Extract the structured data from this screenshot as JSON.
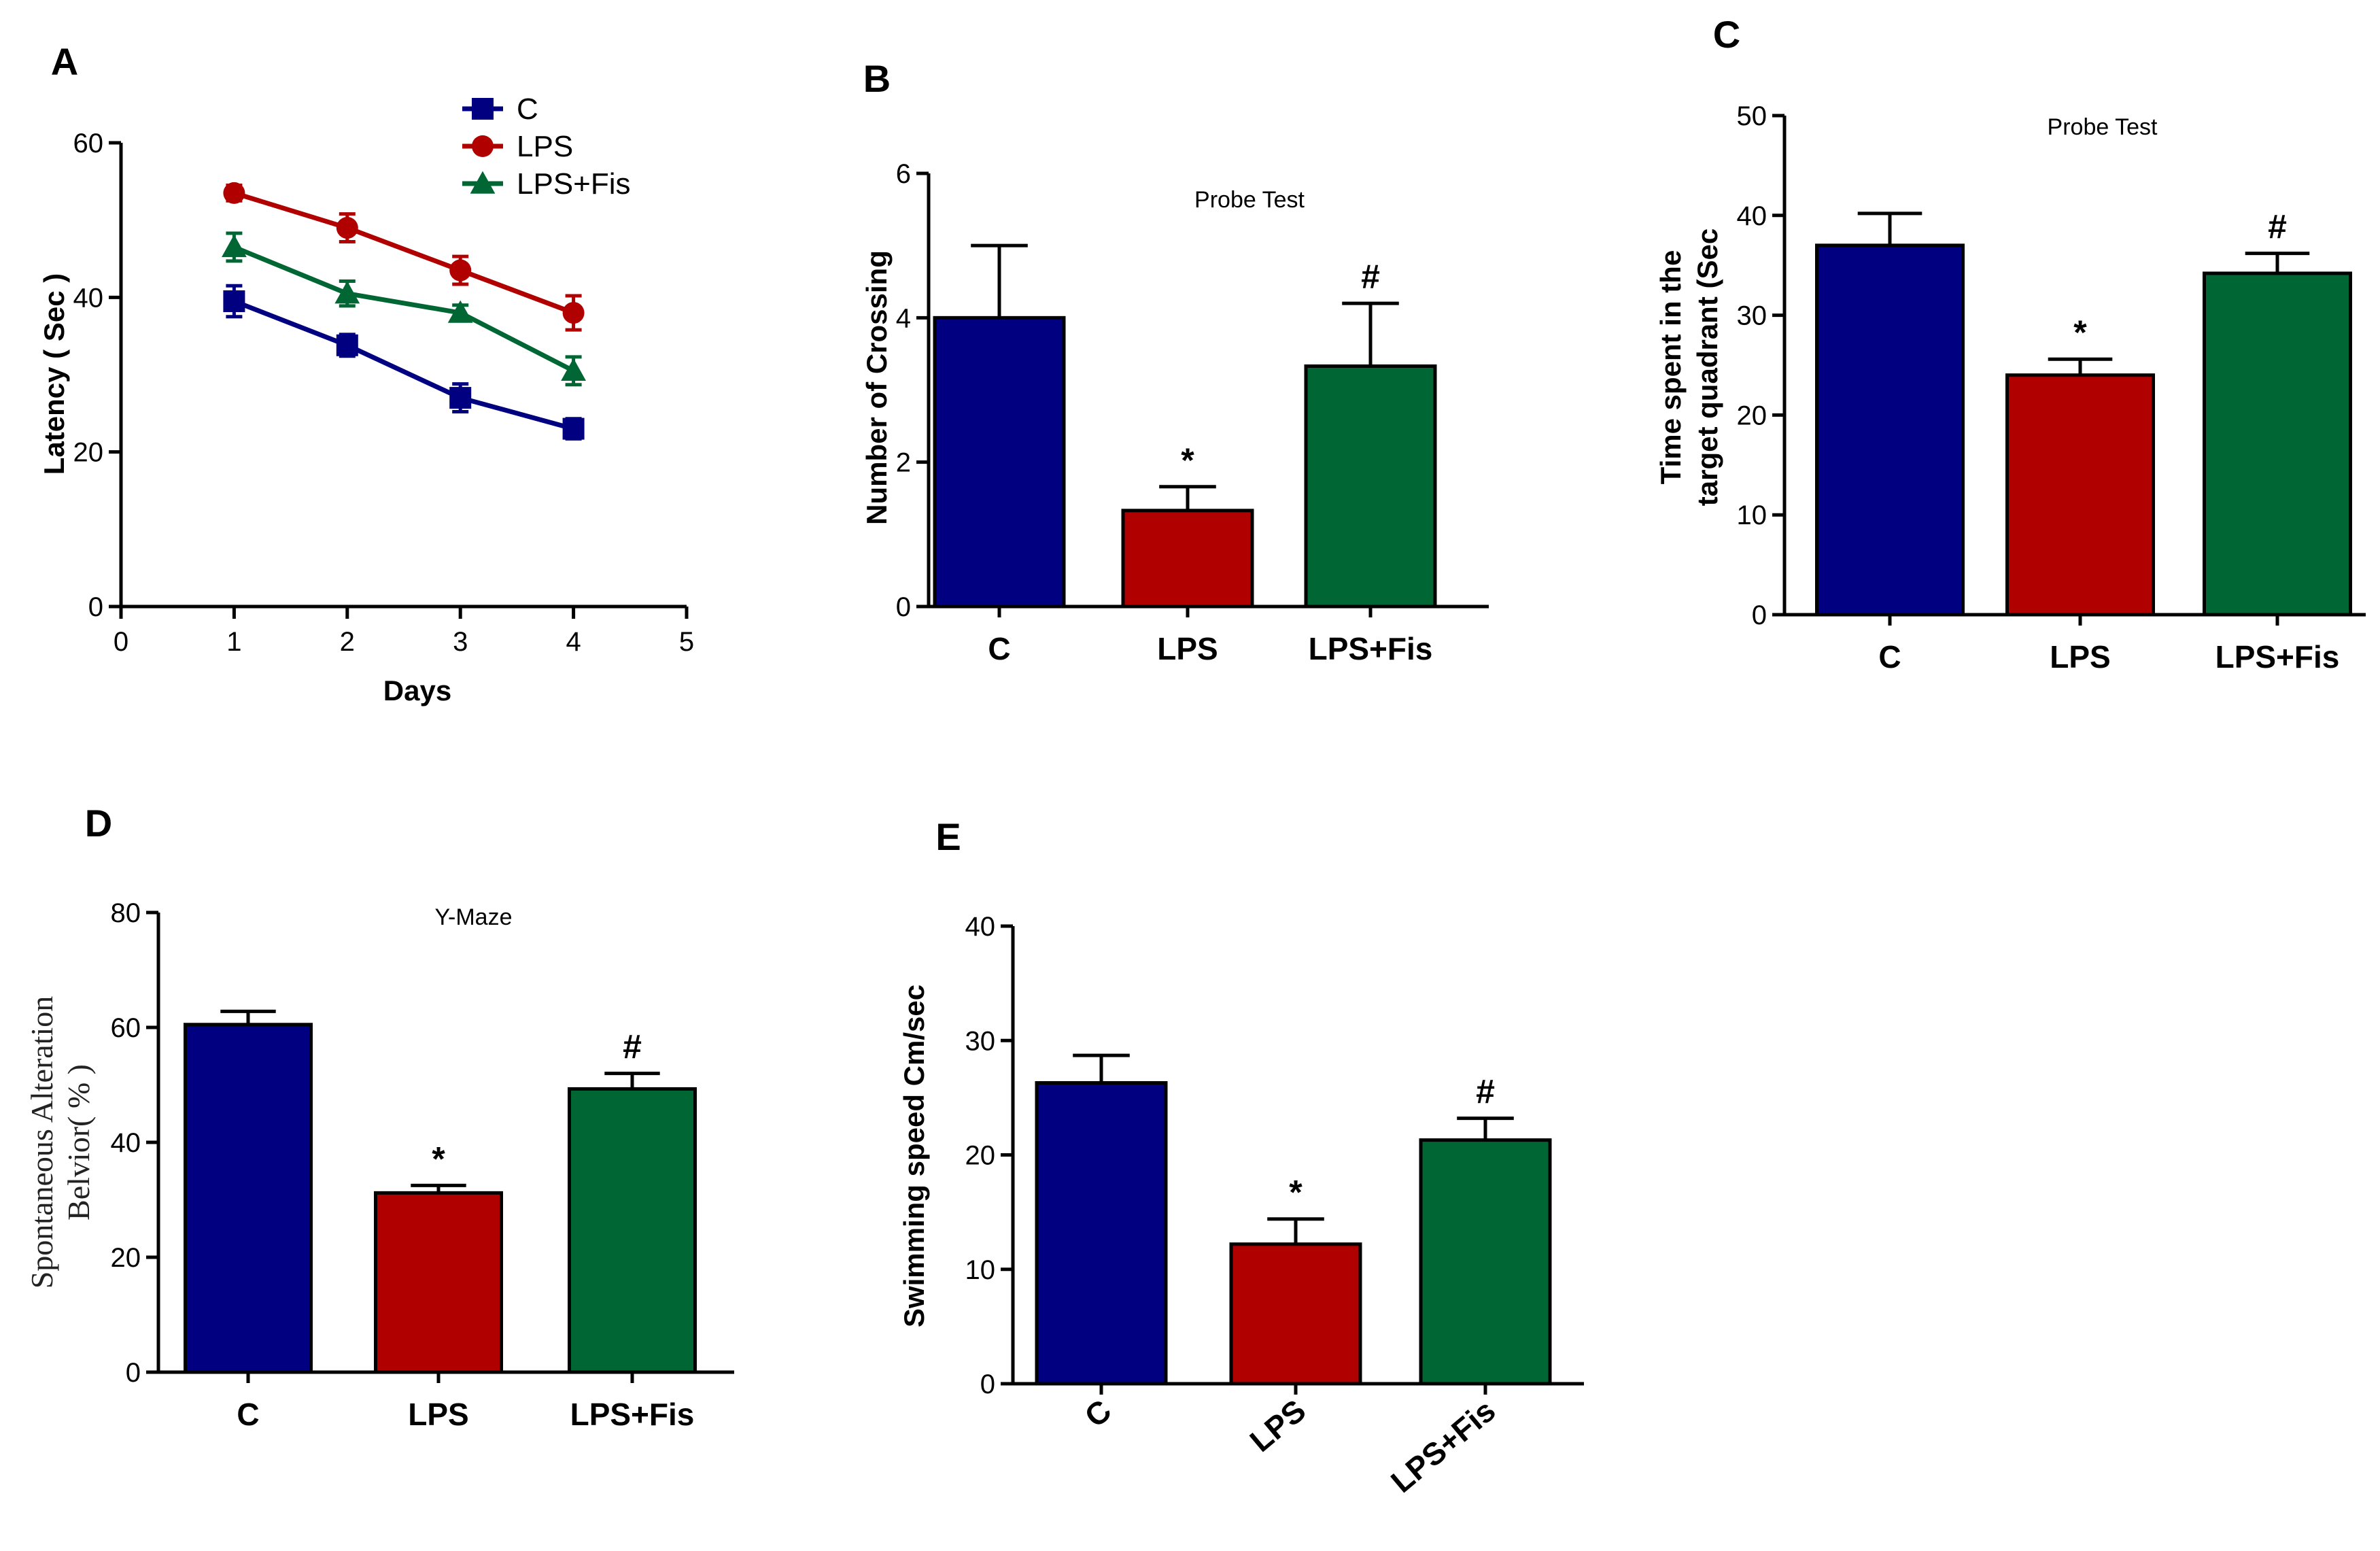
{
  "colors": {
    "C": "#000080",
    "LPS": "#b00000",
    "LPS+Fis": "#006633"
  },
  "chart_data": [
    {
      "panel": "A",
      "type": "line",
      "title": "",
      "xlabel": "Days",
      "ylabel": "Latency ( Sec )",
      "xlim": [
        0,
        5
      ],
      "ylim": [
        0,
        60
      ],
      "xticks": [
        "0",
        "1",
        "2",
        "3",
        "4",
        "5"
      ],
      "yticks": [
        "0",
        "20",
        "40",
        "60"
      ],
      "x": [
        1,
        2,
        3,
        4
      ],
      "series": [
        {
          "name": "C",
          "values": [
            39.5,
            33.8,
            27,
            23
          ],
          "errors": [
            2.0,
            1.4,
            1.8,
            1.3
          ],
          "marker": "square"
        },
        {
          "name": "LPS",
          "values": [
            53.5,
            49,
            43.5,
            38
          ],
          "errors": [
            1.0,
            1.8,
            1.8,
            2.2
          ],
          "marker": "circle"
        },
        {
          "name": "LPS+Fis",
          "values": [
            46.5,
            40.5,
            38,
            30.5
          ],
          "errors": [
            1.8,
            1.6,
            1.0,
            1.8
          ],
          "marker": "triangle"
        }
      ],
      "legend": [
        "C",
        "LPS",
        "LPS+Fis"
      ]
    },
    {
      "panel": "B",
      "type": "bar",
      "title": "Probe Test",
      "xlabel": "",
      "ylabel": "Number of Crossing",
      "ylim": [
        0,
        6
      ],
      "yticks": [
        "0",
        "2",
        "4",
        "6"
      ],
      "categories": [
        "C",
        "LPS",
        "LPS+Fis"
      ],
      "values": [
        4,
        1.33,
        3.33
      ],
      "errors": [
        1.0,
        0.33,
        0.87
      ],
      "annotations": [
        "",
        "*",
        "#"
      ]
    },
    {
      "panel": "C",
      "type": "bar",
      "title": "Probe Test",
      "xlabel": "",
      "ylabel": "Time spent in the target quadrant (Sec",
      "ylabel_lines": [
        "Time spent in the",
        "target quadrant (Sec"
      ],
      "ylim": [
        0,
        50
      ],
      "yticks": [
        "0",
        "10",
        "20",
        "30",
        "40",
        "50"
      ],
      "categories": [
        "C",
        "LPS",
        "LPS+Fis"
      ],
      "values": [
        37,
        24,
        34.2
      ],
      "errors": [
        3.2,
        1.6,
        2.0
      ],
      "annotations": [
        "",
        "*",
        "#"
      ]
    },
    {
      "panel": "D",
      "type": "bar",
      "title": "Y-Maze",
      "xlabel": "",
      "ylabel": "Spontaneous Alteration Belvior( % )",
      "ylabel_lines": [
        "Spontaneous Alteration",
        "Belvior( % )"
      ],
      "ylim": [
        0,
        80
      ],
      "yticks": [
        "0",
        "20",
        "40",
        "60",
        "80"
      ],
      "categories": [
        "C",
        "LPS",
        "LPS+Fis"
      ],
      "values": [
        60.5,
        31.2,
        49.3
      ],
      "errors": [
        2.3,
        1.3,
        2.7
      ],
      "annotations": [
        "",
        "*",
        "#"
      ]
    },
    {
      "panel": "E",
      "type": "bar",
      "title": "",
      "xlabel": "",
      "ylabel": "Swimming speed Cm/sec",
      "ylim": [
        0,
        40
      ],
      "yticks": [
        "0",
        "10",
        "20",
        "30",
        "40"
      ],
      "categories": [
        "C",
        "LPS",
        "LPS+Fis"
      ],
      "values": [
        26.3,
        12.2,
        21.3
      ],
      "errors": [
        2.4,
        2.2,
        1.9
      ],
      "annotations": [
        "",
        "*",
        "#"
      ]
    }
  ]
}
